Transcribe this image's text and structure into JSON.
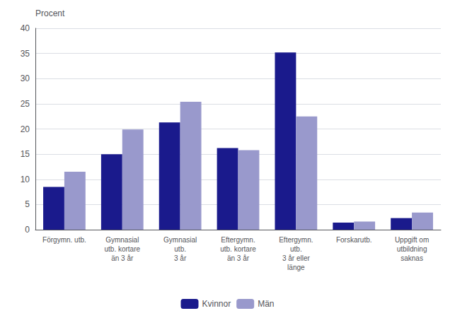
{
  "chart_data": {
    "type": "bar",
    "ylabel": "Procent",
    "categories": [
      "Förgymn. utb.",
      "Gymnasial\nutb. kortare\nän 3 år",
      "Gymnasial\nutb.\n3 år",
      "Eftergymn.\nutb. kortare\nän 3 år",
      "Eftergymn.\nutb.\n3 år eller\nlänge",
      "Forskarutb.",
      "Uppgift om\nutbildning\nsaknas"
    ],
    "series": [
      {
        "name": "Kvinnor",
        "color": "#1a1a8c",
        "values": [
          8.5,
          15.0,
          21.3,
          16.2,
          35.2,
          1.4,
          2.3
        ]
      },
      {
        "name": "Män",
        "color": "#9999cc",
        "values": [
          11.5,
          19.9,
          25.4,
          15.8,
          22.5,
          1.6,
          3.4
        ]
      }
    ],
    "ylim": [
      0,
      40
    ],
    "yticks": [
      0,
      5,
      10,
      15,
      20,
      25,
      30,
      35,
      40
    ],
    "grid": true,
    "legend": "bottom"
  }
}
